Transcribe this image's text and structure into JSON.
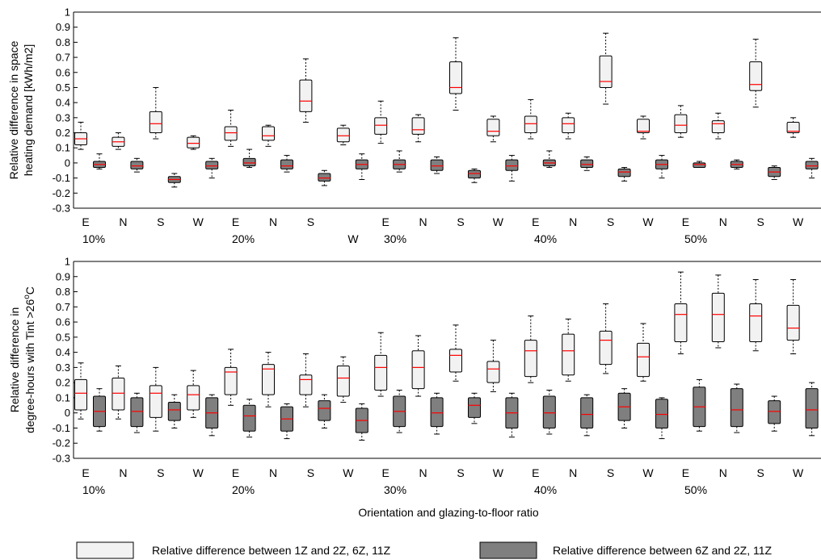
{
  "chart_data": [
    {
      "type": "box",
      "ylabel_lines": [
        "Relative difference in space",
        "heating demand [kWh/m2]"
      ],
      "ylim": [
        -0.3,
        1
      ],
      "yticks": [
        "1",
        "0.9",
        "0.8",
        "0.7",
        "0.6",
        "0.5",
        "0.4",
        "0.3",
        "0.2",
        "0.1",
        "0",
        "-0.1",
        "-0.2",
        "-0.3"
      ],
      "grid": false,
      "orientation_labels": [
        "E",
        "N",
        "S",
        "W",
        "E",
        "N",
        "S",
        "",
        "E",
        "N",
        "S",
        "W",
        "E",
        "N",
        "S",
        "W",
        "E",
        "N",
        "S",
        "W"
      ],
      "extra_labels": [
        "W"
      ],
      "ratio_labels": [
        "10%",
        "20%",
        "30%",
        "40%",
        "50%"
      ],
      "series": [
        {
          "legend_index": 0,
          "boxes": [
            {
              "whisker_low": 0.09,
              "q1": 0.12,
              "median": 0.16,
              "q3": 0.2,
              "whisker_high": 0.27
            },
            {
              "whisker_low": 0.09,
              "q1": 0.11,
              "median": 0.14,
              "q3": 0.17,
              "whisker_high": 0.2
            },
            {
              "whisker_low": 0.16,
              "q1": 0.2,
              "median": 0.26,
              "q3": 0.34,
              "whisker_high": 0.5
            },
            {
              "whisker_low": 0.09,
              "q1": 0.1,
              "median": 0.13,
              "q3": 0.17,
              "whisker_high": 0.18
            },
            {
              "whisker_low": 0.11,
              "q1": 0.15,
              "median": 0.2,
              "q3": 0.24,
              "whisker_high": 0.35
            },
            {
              "whisker_low": 0.11,
              "q1": 0.15,
              "median": 0.18,
              "q3": 0.24,
              "whisker_high": 0.25
            },
            {
              "whisker_low": 0.27,
              "q1": 0.34,
              "median": 0.41,
              "q3": 0.55,
              "whisker_high": 0.69
            },
            {
              "whisker_low": 0.12,
              "q1": 0.14,
              "median": 0.18,
              "q3": 0.23,
              "whisker_high": 0.25
            },
            {
              "whisker_low": 0.13,
              "q1": 0.19,
              "median": 0.25,
              "q3": 0.3,
              "whisker_high": 0.41
            },
            {
              "whisker_low": 0.14,
              "q1": 0.19,
              "median": 0.22,
              "q3": 0.3,
              "whisker_high": 0.32
            },
            {
              "whisker_low": 0.35,
              "q1": 0.46,
              "median": 0.5,
              "q3": 0.67,
              "whisker_high": 0.83
            },
            {
              "whisker_low": 0.14,
              "q1": 0.18,
              "median": 0.21,
              "q3": 0.29,
              "whisker_high": 0.31
            },
            {
              "whisker_low": 0.16,
              "q1": 0.2,
              "median": 0.26,
              "q3": 0.31,
              "whisker_high": 0.42
            },
            {
              "whisker_low": 0.16,
              "q1": 0.2,
              "median": 0.26,
              "q3": 0.3,
              "whisker_high": 0.33
            },
            {
              "whisker_low": 0.39,
              "q1": 0.5,
              "median": 0.54,
              "q3": 0.71,
              "whisker_high": 0.86
            },
            {
              "whisker_low": 0.16,
              "q1": 0.2,
              "median": 0.21,
              "q3": 0.29,
              "whisker_high": 0.31
            },
            {
              "whisker_low": 0.17,
              "q1": 0.2,
              "median": 0.25,
              "q3": 0.32,
              "whisker_high": 0.38
            },
            {
              "whisker_low": 0.16,
              "q1": 0.2,
              "median": 0.26,
              "q3": 0.28,
              "whisker_high": 0.33
            },
            {
              "whisker_low": 0.37,
              "q1": 0.48,
              "median": 0.52,
              "q3": 0.67,
              "whisker_high": 0.82
            },
            {
              "whisker_low": 0.17,
              "q1": 0.2,
              "median": 0.21,
              "q3": 0.27,
              "whisker_high": 0.3
            }
          ]
        },
        {
          "legend_index": 1,
          "boxes": [
            {
              "whisker_low": -0.04,
              "q1": -0.03,
              "median": -0.01,
              "q3": 0.01,
              "whisker_high": 0.06
            },
            {
              "whisker_low": -0.06,
              "q1": -0.04,
              "median": -0.02,
              "q3": 0.01,
              "whisker_high": 0.03
            },
            {
              "whisker_low": -0.16,
              "q1": -0.13,
              "median": -0.11,
              "q3": -0.09,
              "whisker_high": -0.07
            },
            {
              "whisker_low": -0.1,
              "q1": -0.04,
              "median": -0.02,
              "q3": 0.01,
              "whisker_high": 0.03
            },
            {
              "whisker_low": -0.03,
              "q1": -0.02,
              "median": 0.0,
              "q3": 0.03,
              "whisker_high": 0.09
            },
            {
              "whisker_low": -0.06,
              "q1": -0.04,
              "median": -0.02,
              "q3": 0.02,
              "whisker_high": 0.05
            },
            {
              "whisker_low": -0.15,
              "q1": -0.12,
              "median": -0.1,
              "q3": -0.07,
              "whisker_high": -0.05
            },
            {
              "whisker_low": -0.11,
              "q1": -0.04,
              "median": -0.01,
              "q3": 0.02,
              "whisker_high": 0.06
            },
            {
              "whisker_low": -0.06,
              "q1": -0.04,
              "median": -0.01,
              "q3": 0.02,
              "whisker_high": 0.08
            },
            {
              "whisker_low": -0.07,
              "q1": -0.05,
              "median": -0.02,
              "q3": 0.02,
              "whisker_high": 0.04
            },
            {
              "whisker_low": -0.13,
              "q1": -0.1,
              "median": -0.07,
              "q3": -0.05,
              "whisker_high": -0.04
            },
            {
              "whisker_low": -0.12,
              "q1": -0.05,
              "median": -0.02,
              "q3": 0.02,
              "whisker_high": 0.05
            },
            {
              "whisker_low": -0.03,
              "q1": -0.02,
              "median": 0.0,
              "q3": 0.02,
              "whisker_high": 0.08
            },
            {
              "whisker_low": -0.05,
              "q1": -0.03,
              "median": -0.01,
              "q3": 0.02,
              "whisker_high": 0.04
            },
            {
              "whisker_low": -0.12,
              "q1": -0.09,
              "median": -0.06,
              "q3": -0.04,
              "whisker_high": -0.03
            },
            {
              "whisker_low": -0.1,
              "q1": -0.04,
              "median": -0.01,
              "q3": 0.02,
              "whisker_high": 0.05
            },
            {
              "whisker_low": -0.03,
              "q1": -0.03,
              "median": -0.01,
              "q3": 0.0,
              "whisker_high": 0.01
            },
            {
              "whisker_low": -0.04,
              "q1": -0.03,
              "median": -0.01,
              "q3": 0.01,
              "whisker_high": 0.02
            },
            {
              "whisker_low": -0.11,
              "q1": -0.09,
              "median": -0.06,
              "q3": -0.03,
              "whisker_high": -0.02
            },
            {
              "whisker_low": -0.1,
              "q1": -0.04,
              "median": -0.02,
              "q3": 0.01,
              "whisker_high": 0.03
            }
          ]
        }
      ]
    },
    {
      "type": "box",
      "ylabel_lines": [
        "Relative difference in",
        "degree-hours with Tint >26",
        "o",
        "C"
      ],
      "ylim": [
        -0.3,
        1
      ],
      "yticks": [
        "1",
        "0.9",
        "0.8",
        "0.7",
        "0.6",
        "0.5",
        "0.4",
        "0.3",
        "0.2",
        "0.1",
        "0",
        "-0.1",
        "-0.2",
        "-0.3"
      ],
      "grid": false,
      "orientation_labels": [
        "E",
        "N",
        "S",
        "W",
        "E",
        "N",
        "S",
        "W",
        "E",
        "N",
        "S",
        "W",
        "E",
        "N",
        "S",
        "W",
        "E",
        "N",
        "S",
        "W"
      ],
      "ratio_labels": [
        "10%",
        "20%",
        "30%",
        "40%",
        "50%"
      ],
      "xlabel": "Orientation and glazing-to-floor ratio",
      "series": [
        {
          "legend_index": 0,
          "boxes": [
            {
              "whisker_low": -0.04,
              "q1": 0.02,
              "median": 0.13,
              "q3": 0.22,
              "whisker_high": 0.33
            },
            {
              "whisker_low": -0.04,
              "q1": 0.02,
              "median": 0.13,
              "q3": 0.23,
              "whisker_high": 0.31
            },
            {
              "whisker_low": -0.12,
              "q1": -0.03,
              "median": 0.13,
              "q3": 0.18,
              "whisker_high": 0.3
            },
            {
              "whisker_low": -0.03,
              "q1": 0.02,
              "median": 0.12,
              "q3": 0.18,
              "whisker_high": 0.28
            },
            {
              "whisker_low": 0.05,
              "q1": 0.12,
              "median": 0.27,
              "q3": 0.3,
              "whisker_high": 0.42
            },
            {
              "whisker_low": 0.04,
              "q1": 0.12,
              "median": 0.29,
              "q3": 0.32,
              "whisker_high": 0.4
            },
            {
              "whisker_low": 0.04,
              "q1": 0.12,
              "median": 0.22,
              "q3": 0.25,
              "whisker_high": 0.39
            },
            {
              "whisker_low": 0.07,
              "q1": 0.11,
              "median": 0.23,
              "q3": 0.31,
              "whisker_high": 0.37
            },
            {
              "whisker_low": 0.11,
              "q1": 0.15,
              "median": 0.3,
              "q3": 0.38,
              "whisker_high": 0.53
            },
            {
              "whisker_low": 0.11,
              "q1": 0.16,
              "median": 0.3,
              "q3": 0.41,
              "whisker_high": 0.51
            },
            {
              "whisker_low": 0.21,
              "q1": 0.27,
              "median": 0.38,
              "q3": 0.42,
              "whisker_high": 0.58
            },
            {
              "whisker_low": 0.14,
              "q1": 0.2,
              "median": 0.29,
              "q3": 0.34,
              "whisker_high": 0.48
            },
            {
              "whisker_low": 0.2,
              "q1": 0.24,
              "median": 0.41,
              "q3": 0.48,
              "whisker_high": 0.64
            },
            {
              "whisker_low": 0.21,
              "q1": 0.25,
              "median": 0.41,
              "q3": 0.52,
              "whisker_high": 0.62
            },
            {
              "whisker_low": 0.26,
              "q1": 0.32,
              "median": 0.48,
              "q3": 0.54,
              "whisker_high": 0.72
            },
            {
              "whisker_low": 0.21,
              "q1": 0.24,
              "median": 0.37,
              "q3": 0.46,
              "whisker_high": 0.59
            },
            {
              "whisker_low": 0.39,
              "q1": 0.47,
              "median": 0.65,
              "q3": 0.72,
              "whisker_high": 0.93
            },
            {
              "whisker_low": 0.43,
              "q1": 0.47,
              "median": 0.65,
              "q3": 0.79,
              "whisker_high": 0.91
            },
            {
              "whisker_low": 0.41,
              "q1": 0.47,
              "median": 0.64,
              "q3": 0.72,
              "whisker_high": 0.88
            },
            {
              "whisker_low": 0.39,
              "q1": 0.48,
              "median": 0.56,
              "q3": 0.71,
              "whisker_high": 0.88
            }
          ]
        },
        {
          "legend_index": 1,
          "boxes": [
            {
              "whisker_low": -0.12,
              "q1": -0.09,
              "median": 0.01,
              "q3": 0.11,
              "whisker_high": 0.16
            },
            {
              "whisker_low": -0.13,
              "q1": -0.09,
              "median": 0.01,
              "q3": 0.1,
              "whisker_high": 0.13
            },
            {
              "whisker_low": -0.1,
              "q1": -0.05,
              "median": 0.02,
              "q3": 0.07,
              "whisker_high": 0.12
            },
            {
              "whisker_low": -0.15,
              "q1": -0.1,
              "median": 0.0,
              "q3": 0.1,
              "whisker_high": 0.12
            },
            {
              "whisker_low": -0.16,
              "q1": -0.12,
              "median": -0.02,
              "q3": 0.05,
              "whisker_high": 0.09
            },
            {
              "whisker_low": -0.17,
              "q1": -0.12,
              "median": -0.04,
              "q3": 0.04,
              "whisker_high": 0.06
            },
            {
              "whisker_low": -0.1,
              "q1": -0.05,
              "median": 0.03,
              "q3": 0.08,
              "whisker_high": 0.12
            },
            {
              "whisker_low": -0.18,
              "q1": -0.13,
              "median": -0.05,
              "q3": 0.03,
              "whisker_high": 0.06
            },
            {
              "whisker_low": -0.13,
              "q1": -0.09,
              "median": 0.01,
              "q3": 0.11,
              "whisker_high": 0.15
            },
            {
              "whisker_low": -0.14,
              "q1": -0.09,
              "median": 0.0,
              "q3": 0.1,
              "whisker_high": 0.13
            },
            {
              "whisker_low": -0.07,
              "q1": -0.03,
              "median": 0.05,
              "q3": 0.1,
              "whisker_high": 0.13
            },
            {
              "whisker_low": -0.16,
              "q1": -0.1,
              "median": 0.0,
              "q3": 0.1,
              "whisker_high": 0.13
            },
            {
              "whisker_low": -0.14,
              "q1": -0.1,
              "median": 0.0,
              "q3": 0.11,
              "whisker_high": 0.15
            },
            {
              "whisker_low": -0.15,
              "q1": -0.1,
              "median": -0.01,
              "q3": 0.1,
              "whisker_high": 0.12
            },
            {
              "whisker_low": -0.1,
              "q1": -0.05,
              "median": 0.04,
              "q3": 0.13,
              "whisker_high": 0.16
            },
            {
              "whisker_low": -0.17,
              "q1": -0.1,
              "median": -0.01,
              "q3": 0.09,
              "whisker_high": 0.1
            },
            {
              "whisker_low": -0.12,
              "q1": -0.09,
              "median": 0.04,
              "q3": 0.17,
              "whisker_high": 0.22
            },
            {
              "whisker_low": -0.13,
              "q1": -0.09,
              "median": 0.02,
              "q3": 0.16,
              "whisker_high": 0.19
            },
            {
              "whisker_low": -0.12,
              "q1": -0.07,
              "median": 0.01,
              "q3": 0.08,
              "whisker_high": 0.11
            },
            {
              "whisker_low": -0.15,
              "q1": -0.1,
              "median": 0.02,
              "q3": 0.16,
              "whisker_high": 0.2
            }
          ]
        }
      ]
    }
  ],
  "legend": {
    "placement": "bottom",
    "entries": [
      {
        "label": "Relative difference between 1Z and 2Z, 6Z, 11Z",
        "fill": "#f2f2f2"
      },
      {
        "label": "Relative difference between 6Z and 2Z, 11Z",
        "fill": "#7f7f7f"
      }
    ]
  },
  "colors": {
    "median": "#ff0000",
    "box_stroke": "#000000",
    "light_fill": "#f2f2f2",
    "dark_fill": "#7f7f7f"
  }
}
